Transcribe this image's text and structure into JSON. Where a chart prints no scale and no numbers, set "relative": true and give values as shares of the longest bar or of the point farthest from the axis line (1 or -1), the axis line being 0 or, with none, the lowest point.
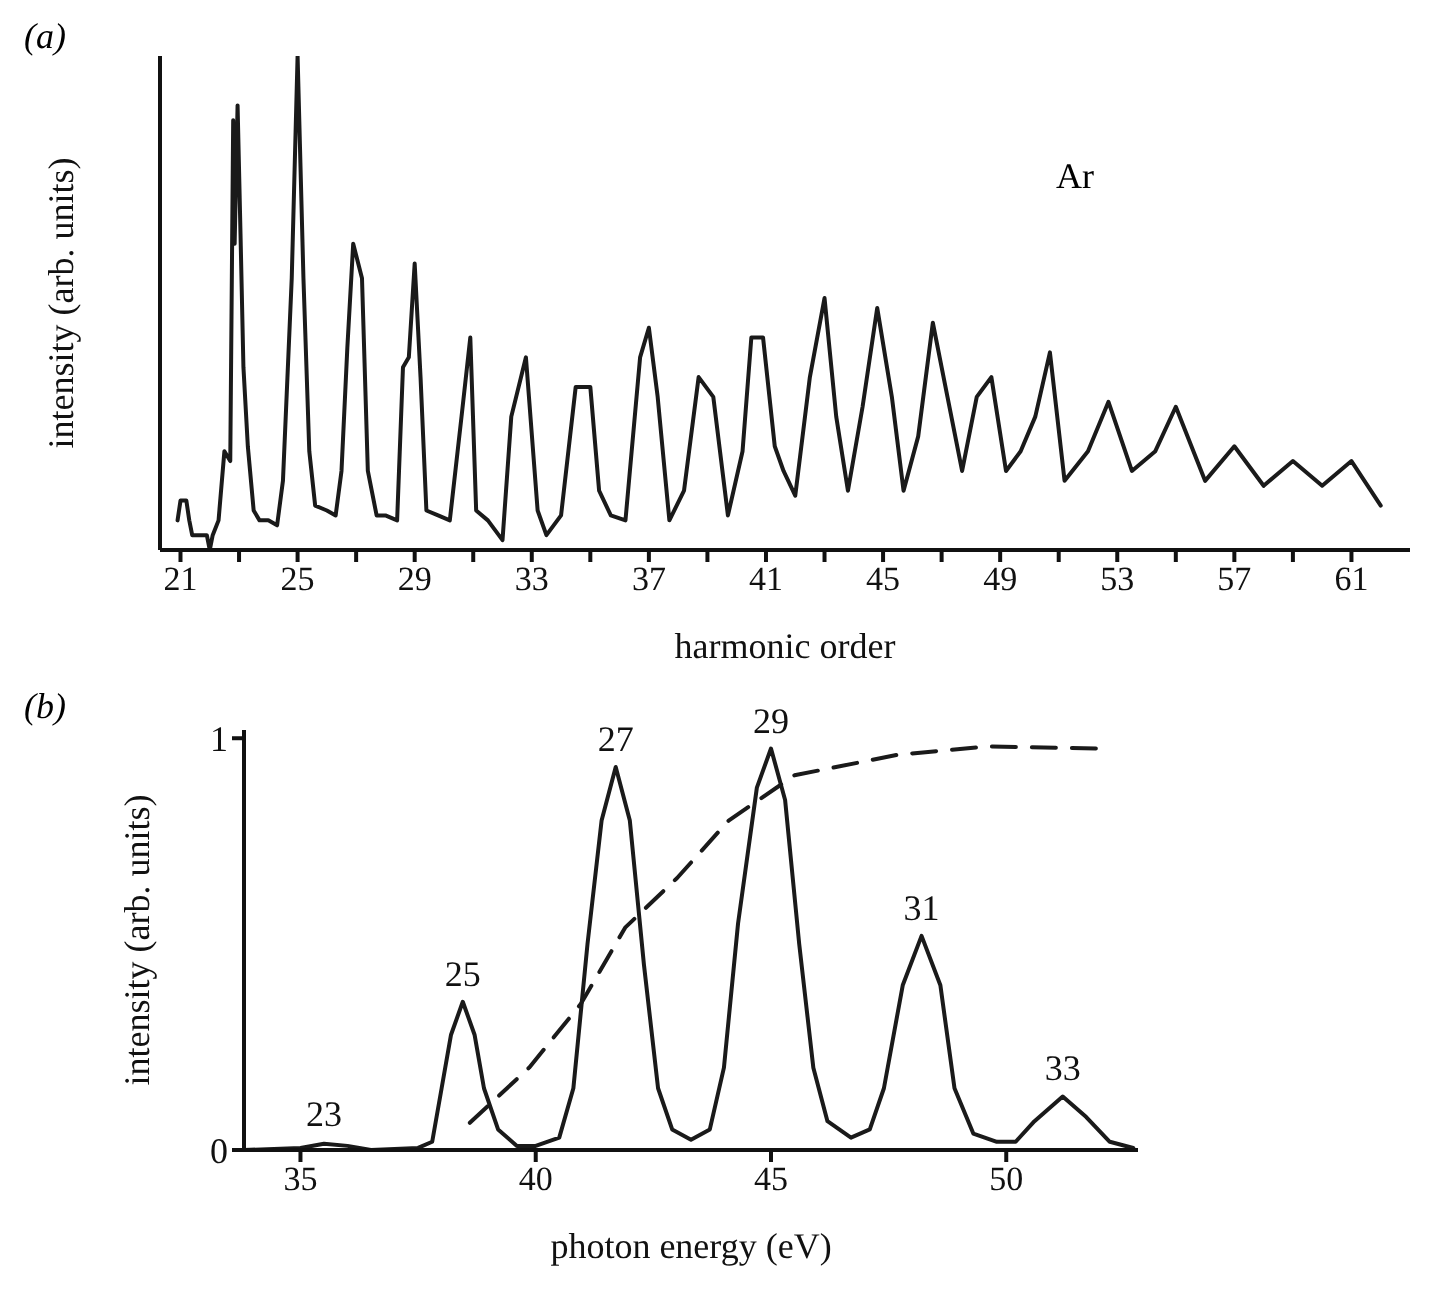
{
  "chart_data": [
    {
      "type": "line",
      "title": "(a)",
      "xlabel": "harmonic order",
      "ylabel": "intensity (arb. units)",
      "relative": true,
      "tick_labels": "x",
      "annotations": [
        "Ar"
      ],
      "color": "#1a1a1a",
      "xlim": [
        20.3,
        63
      ],
      "xticks": [
        21,
        {
          "value": 23,
          "label": null
        },
        25,
        {
          "value": 27,
          "label": null
        },
        29,
        {
          "value": 31,
          "label": null
        },
        33,
        {
          "value": 35,
          "label": null
        },
        37,
        {
          "value": 39,
          "label": null
        },
        41,
        {
          "value": 43,
          "label": null
        },
        45,
        {
          "value": 47,
          "label": null
        },
        49,
        {
          "value": 51,
          "label": null
        },
        53,
        {
          "value": 55,
          "label": null
        },
        57,
        {
          "value": 59,
          "label": null
        },
        61
      ],
      "x": [
        20.9,
        21.0,
        21.2,
        21.3,
        21.4,
        21.9,
        22.0,
        22.1,
        22.3,
        22.5,
        22.7,
        22.8,
        22.85,
        22.95,
        23.05,
        23.15,
        23.3,
        23.5,
        23.7,
        24.0,
        24.3,
        24.5,
        24.8,
        25.0,
        25.2,
        25.4,
        25.6,
        26.0,
        26.3,
        26.5,
        26.7,
        26.9,
        27.2,
        27.4,
        27.7,
        28.0,
        28.4,
        28.6,
        28.8,
        29.0,
        29.2,
        29.4,
        29.8,
        30.2,
        30.6,
        30.9,
        31.1,
        31.5,
        32.0,
        32.3,
        32.8,
        33.2,
        33.5,
        34.0,
        34.5,
        35.0,
        35.3,
        35.7,
        36.2,
        36.7,
        37.0,
        37.3,
        37.7,
        38.2,
        38.7,
        39.2,
        39.7,
        40.2,
        40.5,
        40.9,
        41.3,
        41.6,
        42.0,
        42.5,
        43.0,
        43.4,
        43.8,
        44.3,
        44.8,
        45.3,
        45.7,
        46.2,
        46.7,
        47.2,
        47.7,
        48.2,
        48.7,
        49.2,
        49.7,
        50.2,
        50.7,
        51.2,
        52.0,
        52.7,
        53.5,
        54.3,
        55.0,
        56.0,
        57.0,
        58.0,
        59.0,
        60.0,
        61.0,
        62.0
      ],
      "values": [
        0.06,
        0.1,
        0.1,
        0.06,
        0.03,
        0.03,
        0,
        0.03,
        0.06,
        0.2,
        0.18,
        0.87,
        0.62,
        0.9,
        0.64,
        0.37,
        0.21,
        0.08,
        0.06,
        0.06,
        0.05,
        0.14,
        0.55,
        1,
        0.55,
        0.2,
        0.09,
        0.08,
        0.07,
        0.16,
        0.41,
        0.62,
        0.55,
        0.16,
        0.07,
        0.07,
        0.06,
        0.37,
        0.39,
        0.58,
        0.35,
        0.08,
        0.07,
        0.06,
        0.27,
        0.43,
        0.08,
        0.06,
        0.02,
        0.27,
        0.39,
        0.08,
        0.03,
        0.07,
        0.33,
        0.33,
        0.12,
        0.07,
        0.06,
        0.39,
        0.45,
        0.31,
        0.06,
        0.12,
        0.35,
        0.31,
        0.07,
        0.2,
        0.43,
        0.43,
        0.21,
        0.16,
        0.11,
        0.35,
        0.51,
        0.27,
        0.12,
        0.29,
        0.49,
        0.31,
        0.12,
        0.23,
        0.46,
        0.31,
        0.16,
        0.31,
        0.35,
        0.16,
        0.2,
        0.27,
        0.4,
        0.14,
        0.2,
        0.3,
        0.16,
        0.2,
        0.29,
        0.14,
        0.21,
        0.13,
        0.18,
        0.13,
        0.18,
        0.09
      ]
    },
    {
      "type": "line",
      "title": "(b)",
      "xlabel": "photon energy (eV)",
      "ylabel": "intensity (arb. units)",
      "xlim": [
        33.8,
        52.8
      ],
      "xticks": [
        35,
        40,
        45,
        50
      ],
      "ylim": [
        0,
        1.02
      ],
      "yticks": [
        0,
        1
      ],
      "annotations": [
        {
          "text": "23",
          "x": 35.5,
          "y": 0.02
        },
        {
          "text": "25",
          "x": 38.45,
          "y": 0.36
        },
        {
          "text": "27",
          "x": 41.7,
          "y": 0.93
        },
        {
          "text": "29",
          "x": 45.0,
          "y": 0.975
        },
        {
          "text": "31",
          "x": 48.2,
          "y": 0.52
        },
        {
          "text": "33",
          "x": 51.2,
          "y": 0.13
        }
      ],
      "series": [
        {
          "color": "#1a1a1a",
          "x": [
            33.8,
            35.0,
            35.5,
            36.0,
            36.5,
            37.5,
            37.8,
            38.0,
            38.2,
            38.45,
            38.7,
            38.9,
            39.2,
            39.6,
            40.0,
            40.5,
            40.8,
            41.1,
            41.4,
            41.7,
            42.0,
            42.3,
            42.6,
            42.9,
            43.3,
            43.7,
            44.0,
            44.3,
            44.7,
            45.0,
            45.3,
            45.6,
            45.9,
            46.2,
            46.7,
            47.1,
            47.4,
            47.8,
            48.2,
            48.6,
            48.9,
            49.3,
            49.8,
            50.2,
            50.6,
            51.2,
            51.7,
            52.2,
            52.7
          ],
          "values": [
            0,
            0.005,
            0.015,
            0.01,
            0,
            0.005,
            0.02,
            0.15,
            0.28,
            0.36,
            0.28,
            0.15,
            0.05,
            0.01,
            0.01,
            0.03,
            0.15,
            0.5,
            0.8,
            0.93,
            0.8,
            0.45,
            0.15,
            0.05,
            0.025,
            0.05,
            0.2,
            0.55,
            0.88,
            0.975,
            0.85,
            0.5,
            0.2,
            0.07,
            0.03,
            0.05,
            0.15,
            0.4,
            0.52,
            0.4,
            0.15,
            0.04,
            0.02,
            0.02,
            0.07,
            0.13,
            0.08,
            0.02,
            0.005
          ]
        },
        {
          "color": "#1a1a1a",
          "line_style": "dashed",
          "x": [
            38.6,
            39.86,
            40.96,
            41.9,
            43.0,
            44.1,
            45.5,
            47.7,
            49.6,
            52.0
          ],
          "values": [
            0.066,
            0.2,
            0.355,
            0.54,
            0.66,
            0.8,
            0.91,
            0.96,
            0.98,
            0.975
          ]
        }
      ]
    }
  ]
}
